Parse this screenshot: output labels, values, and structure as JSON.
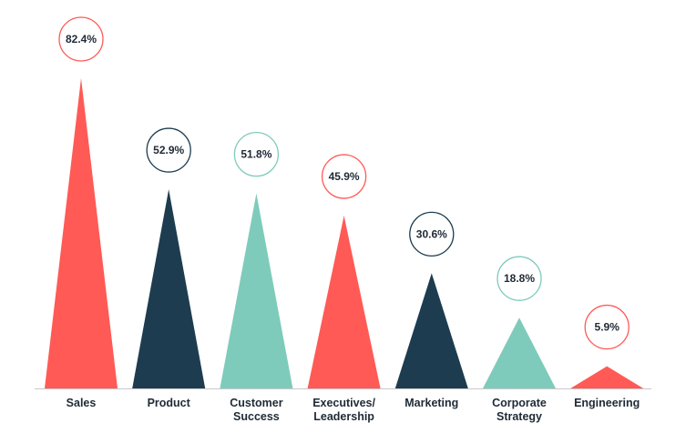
{
  "colors": {
    "red": "#ff5a55",
    "navy": "#1d3c50",
    "teal": "#7ecbbb",
    "text": "#1f2a36",
    "axis": "#c8c8c8"
  },
  "chart_data": {
    "type": "bar",
    "mark_shape": "triangle",
    "title": "",
    "xlabel": "",
    "ylabel": "",
    "ylim": [
      0,
      100
    ],
    "grid": false,
    "categories": [
      "Sales",
      "Product",
      "Customer Success",
      "Executives/ Leadership",
      "Marketing",
      "Corporate Strategy",
      "Engineering"
    ],
    "category_lines": [
      [
        "Sales"
      ],
      [
        "Product"
      ],
      [
        "Customer",
        "Success"
      ],
      [
        "Executives/",
        "Leadership"
      ],
      [
        "Marketing"
      ],
      [
        "Corporate",
        "Strategy"
      ],
      [
        "Engineering"
      ]
    ],
    "values": [
      82.4,
      52.9,
      51.8,
      45.9,
      30.6,
      18.8,
      5.9
    ],
    "data_labels": [
      "82.4%",
      "52.9%",
      "51.8%",
      "45.9%",
      "30.6%",
      "18.8%",
      "5.9%"
    ],
    "bar_colors": [
      "red",
      "navy",
      "teal",
      "red",
      "navy",
      "teal",
      "red"
    ]
  }
}
